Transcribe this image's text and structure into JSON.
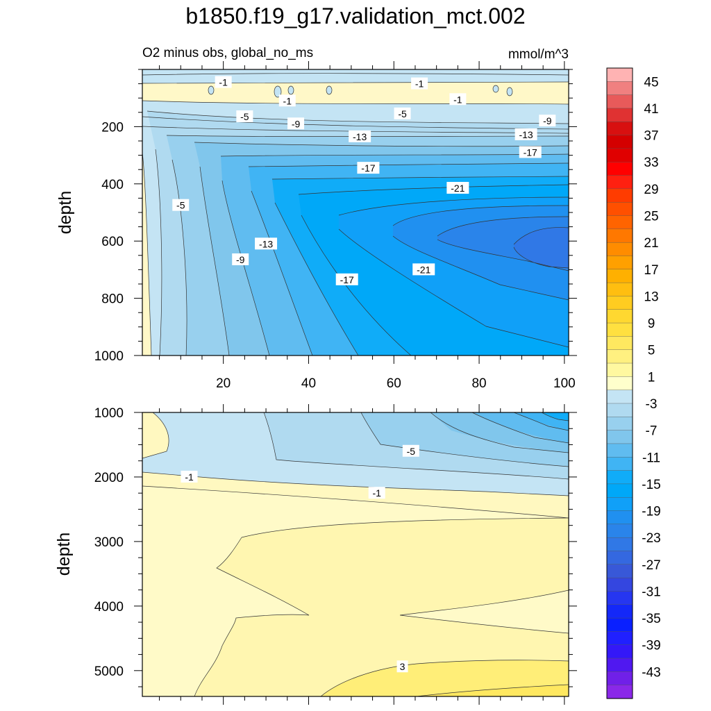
{
  "chart_data": {
    "type": "heatmap",
    "title": "b1850.f19_g17.validation_mct.002",
    "subtitle_left": "O2 minus obs, global_no_ms",
    "subtitle_right": "mmol/m^3",
    "x": {
      "range": [
        1,
        101
      ],
      "ticks": [
        20,
        40,
        60,
        80,
        100
      ],
      "tick_labels": [
        "20",
        "40",
        "60",
        "80",
        "100"
      ]
    },
    "panels": [
      {
        "name": "upper",
        "ylabel": "depth",
        "ylim": [
          0,
          1000
        ],
        "yticks": [
          200,
          400,
          600,
          800,
          1000
        ],
        "ytick_labels": [
          "200",
          "400",
          "600",
          "800",
          "1000"
        ],
        "contour_labels": [
          {
            "text": "-1",
            "x": 20,
            "y": 45
          },
          {
            "text": "-1",
            "x": 66,
            "y": 50
          },
          {
            "text": "-1",
            "x": 35,
            "y": 110
          },
          {
            "text": "-1",
            "x": 75,
            "y": 105
          },
          {
            "text": "-5",
            "x": 25,
            "y": 165
          },
          {
            "text": "-5",
            "x": 62,
            "y": 155
          },
          {
            "text": "-9",
            "x": 37,
            "y": 190
          },
          {
            "text": "-9",
            "x": 96,
            "y": 180
          },
          {
            "text": "-13",
            "x": 52,
            "y": 235
          },
          {
            "text": "-13",
            "x": 91,
            "y": 228
          },
          {
            "text": "-17",
            "x": 54,
            "y": 345
          },
          {
            "text": "-17",
            "x": 92,
            "y": 290
          },
          {
            "text": "-21",
            "x": 75,
            "y": 415
          },
          {
            "text": "-5",
            "x": 10,
            "y": 475
          },
          {
            "text": "-13",
            "x": 30,
            "y": 610
          },
          {
            "text": "-9",
            "x": 24,
            "y": 665
          },
          {
            "text": "-17",
            "x": 49,
            "y": 735
          },
          {
            "text": "-21",
            "x": 67,
            "y": 700
          }
        ]
      },
      {
        "name": "lower",
        "ylabel": "depth",
        "ylim": [
          1000,
          5400
        ],
        "yticks": [
          1000,
          2000,
          3000,
          4000,
          5000
        ],
        "ytick_labels": [
          "1000",
          "2000",
          "3000",
          "4000",
          "5000"
        ],
        "contour_labels": [
          {
            "text": "-5",
            "x": 64,
            "y": 1600
          },
          {
            "text": "-1",
            "x": 12,
            "y": 2000
          },
          {
            "text": "-1",
            "x": 56,
            "y": 2250
          },
          {
            "text": "3",
            "x": 62,
            "y": 4940
          }
        ]
      }
    ],
    "colorbar": {
      "levels": [
        45,
        43,
        41,
        39,
        37,
        35,
        33,
        31,
        29,
        27,
        25,
        23,
        21,
        19,
        17,
        15,
        13,
        11,
        9,
        7,
        5,
        3,
        1,
        -1,
        -3,
        -5,
        -7,
        -9,
        -11,
        -13,
        -15,
        -17,
        -19,
        -21,
        -23,
        -25,
        -27,
        -29,
        -31,
        -33,
        -35,
        -37,
        -39,
        -41,
        -43,
        -45
      ],
      "tick_labels": [
        "45",
        "41",
        "37",
        "33",
        "29",
        "25",
        "21",
        "17",
        "13",
        "9",
        "5",
        "1",
        "-3",
        "-7",
        "-11",
        "-15",
        "-19",
        "-23",
        "-27",
        "-31",
        "-35",
        "-39",
        "-43"
      ],
      "colors": [
        "#ffb3b3",
        "#f08080",
        "#e85a5a",
        "#e03232",
        "#d81010",
        "#d40000",
        "#e00000",
        "#ff0000",
        "#ff2010",
        "#ff3c00",
        "#ff5000",
        "#ff6400",
        "#ff7800",
        "#ff8c00",
        "#ffa000",
        "#ffb000",
        "#ffbe10",
        "#ffcc20",
        "#ffd830",
        "#ffe040",
        "#ffe860",
        "#fff080",
        "#fff8a0",
        "#ffffcc",
        "#c4e4f4",
        "#b0daf0",
        "#98d0ee",
        "#80c6ec",
        "#60bcf0",
        "#40b4f4",
        "#10acf8",
        "#00a8f8",
        "#10a0f8",
        "#2090f0",
        "#2a84ea",
        "#3078e6",
        "#3468e0",
        "#3858d8",
        "#3446e0",
        "#2636f0",
        "#1428f8",
        "#0a20ff",
        "#2020ff",
        "#3418f8",
        "#5018f0",
        "#7020e8",
        "#8a28e8"
      ]
    }
  }
}
